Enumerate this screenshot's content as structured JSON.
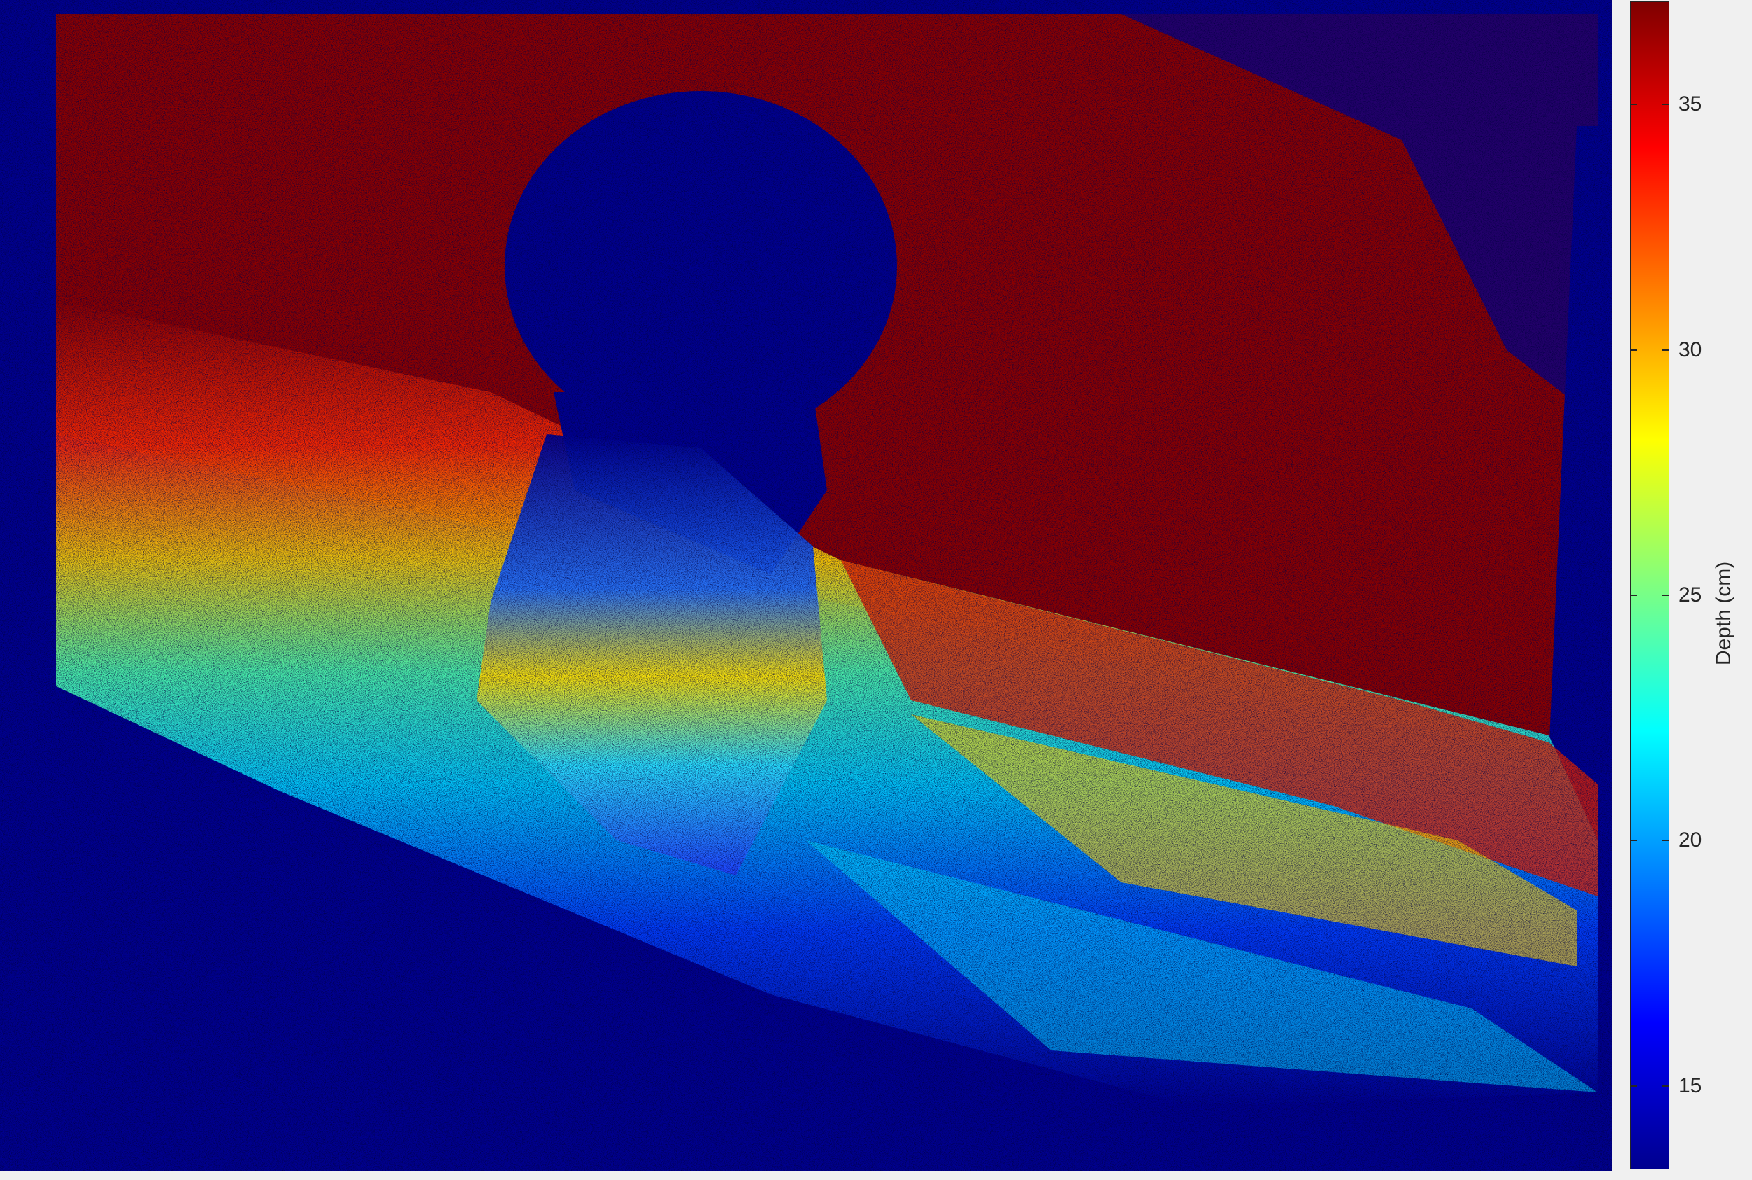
{
  "chart_data": {
    "type": "heatmap",
    "title": "",
    "colormap": "jet",
    "colorbar": {
      "label": "Depth (cm)",
      "range": [
        13.3,
        37.1
      ],
      "ticks": [
        15,
        20,
        25,
        30,
        35
      ],
      "tick_labels": [
        "15",
        "20",
        "25",
        "30",
        "35"
      ],
      "placement": "right"
    },
    "image_description_values": {
      "background_far_plane_depth": 37,
      "near_floor_band_depth": 24,
      "object_top_depth": 14,
      "invalid_pixel_value": 13.3
    }
  }
}
